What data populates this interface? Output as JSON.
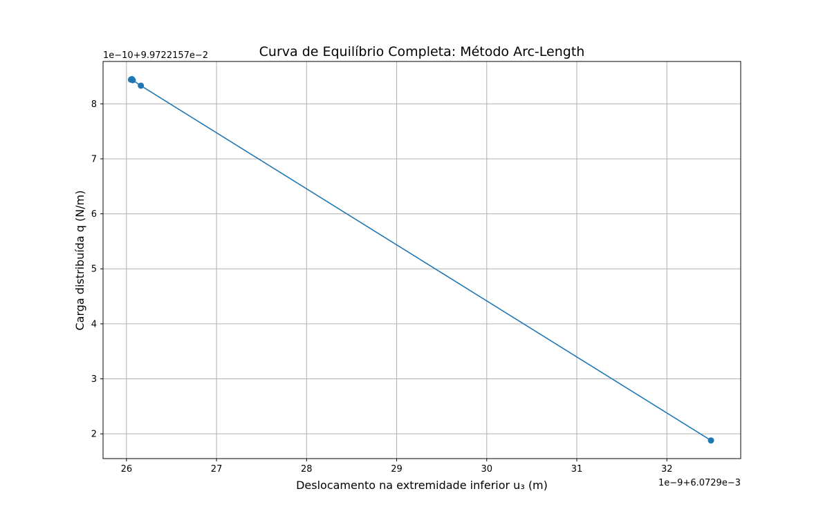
{
  "chart_data": {
    "type": "line",
    "title": "Curva de Equilíbrio Completa: Método Arc-Length",
    "xlabel": "Deslocamento na extremidade inferior u₃ (m)",
    "ylabel": "Carga distribuída q (N/m)",
    "x_offset_label": "1e−9+6.0729e−3",
    "y_offset_label": "1e−10+9.9722157e−2",
    "xlim": [
      25.74,
      32.82
    ],
    "ylim": [
      1.55,
      8.77
    ],
    "x_ticks": [
      26,
      27,
      28,
      29,
      30,
      31,
      32
    ],
    "y_ticks": [
      2,
      3,
      4,
      5,
      6,
      7,
      8
    ],
    "grid": true,
    "marker": "circle",
    "color": "#1f77b4",
    "series": [
      {
        "x": [
          26.05,
          26.06,
          26.07,
          26.16,
          32.49
        ],
        "y": [
          8.44,
          8.45,
          8.43,
          8.33,
          1.88
        ]
      }
    ]
  }
}
